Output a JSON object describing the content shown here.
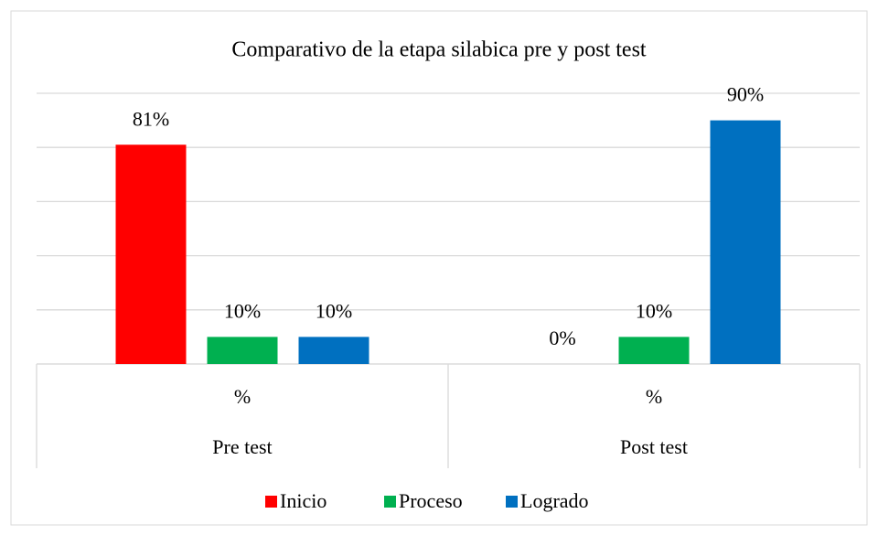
{
  "chart_data": {
    "type": "bar",
    "title": "Comparativo de la etapa silabica pre y post test",
    "categories": [
      "Pre test",
      "Post test"
    ],
    "subcategories": [
      "%",
      "%"
    ],
    "series": [
      {
        "name": "Inicio",
        "color": "#ff0000",
        "values": [
          81,
          0
        ],
        "value_labels": [
          "81%",
          "0%"
        ]
      },
      {
        "name": "Proceso",
        "color": "#00b050",
        "values": [
          10,
          10
        ],
        "value_labels": [
          "10%",
          "10%"
        ]
      },
      {
        "name": "Logrado",
        "color": "#0070c0",
        "values": [
          10,
          90
        ],
        "value_labels": [
          "10%",
          "90%"
        ]
      }
    ],
    "ylim": [
      0,
      100
    ],
    "yticks": [
      0,
      20,
      40,
      60,
      80,
      100
    ],
    "grid": true,
    "legend": "bottom"
  }
}
